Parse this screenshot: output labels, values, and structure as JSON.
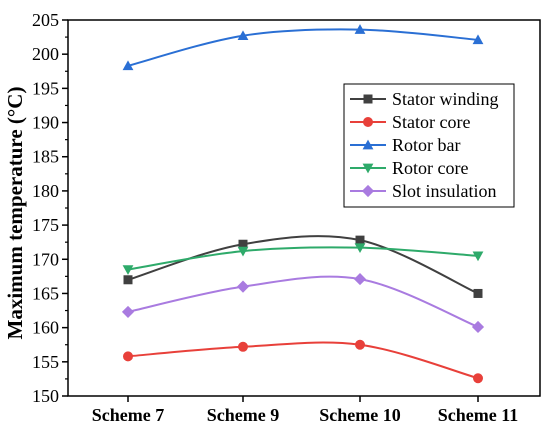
{
  "chart_data": {
    "type": "line",
    "categories": [
      "Scheme 7",
      "Scheme 9",
      "Scheme 10",
      "Scheme 11"
    ],
    "ylabel": "Maximum temperature (°C)",
    "xlabel": "",
    "ylim": [
      150,
      205
    ],
    "yticks": [
      150,
      155,
      160,
      165,
      170,
      175,
      180,
      185,
      190,
      195,
      200,
      205
    ],
    "grid": false,
    "legend_position": "top-right",
    "series": [
      {
        "name": "Stator winding",
        "color": "#404040",
        "marker": "square",
        "values": [
          167.0,
          172.2,
          172.8,
          165.0
        ]
      },
      {
        "name": "Stator core",
        "color": "#e8403a",
        "marker": "circle",
        "values": [
          155.8,
          157.2,
          157.5,
          152.6
        ]
      },
      {
        "name": "Rotor bar",
        "color": "#2a6fd4",
        "marker": "triangle-up",
        "values": [
          198.3,
          202.7,
          203.6,
          202.1
        ]
      },
      {
        "name": "Rotor core",
        "color": "#2eaa6a",
        "marker": "triangle-down",
        "values": [
          168.5,
          171.2,
          171.7,
          170.5
        ]
      },
      {
        "name": "Slot insulation",
        "color": "#a97be0",
        "marker": "diamond",
        "values": [
          162.3,
          166.0,
          167.1,
          160.1
        ]
      }
    ]
  }
}
